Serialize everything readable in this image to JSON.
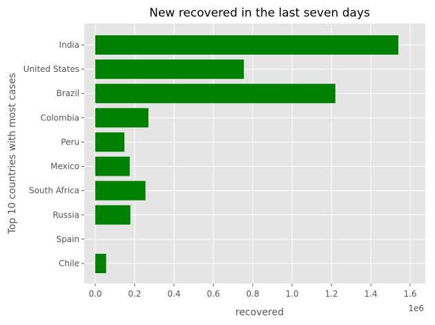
{
  "chart_data": {
    "type": "bar",
    "orientation": "horizontal",
    "title": "New recovered in the last seven days",
    "xlabel": "recovered",
    "ylabel": "Top 10 countries with most cases",
    "categories": [
      "India",
      "United States",
      "Brazil",
      "Colombia",
      "Peru",
      "Mexico",
      "South Africa",
      "Russia",
      "Spain",
      "Chile"
    ],
    "values": [
      1540000,
      755000,
      1220000,
      270000,
      148000,
      175000,
      255000,
      178000,
      0,
      55000
    ],
    "xlim": [
      0,
      1600000
    ],
    "xticks": [
      0,
      200000,
      400000,
      600000,
      800000,
      1000000,
      1200000,
      1400000,
      1600000
    ],
    "xtick_labels": [
      "0.0",
      "0.2",
      "0.4",
      "0.6",
      "0.8",
      "1.0",
      "1.2",
      "1.4",
      "1.6"
    ],
    "x_scale_label": "1e6",
    "bar_color": "#008000",
    "background_color": "#e5e5e5",
    "grid": true,
    "grid_color": "#ffffff"
  }
}
